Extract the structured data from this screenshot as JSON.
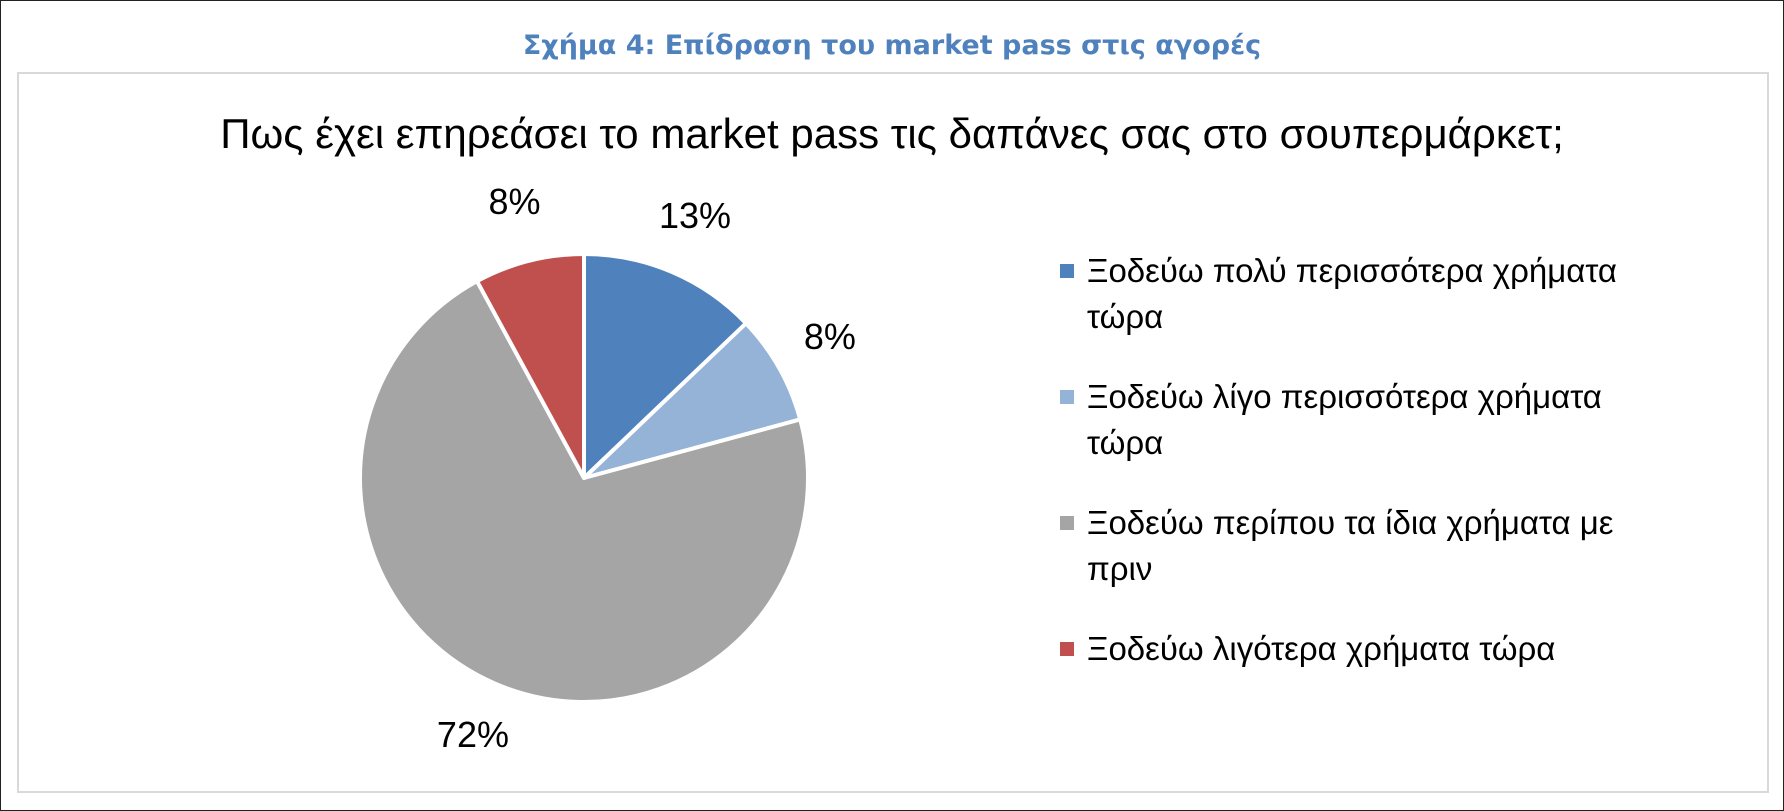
{
  "caption": "Σχήμα 4: Επίδραση του market pass στις αγορές",
  "chart_data": {
    "type": "pie",
    "title": "Πως έχει επηρεάσει το market pass τις δαπάνες σας στο σουπερμάρκετ;",
    "categories": [
      "Ξοδεύω πολύ περισσότερα χρήματα τώρα",
      "Ξοδεύω λίγο περισσότερα χρήματα τώρα",
      "Ξοδεύω περίπου τα ίδια χρήματα με πριν",
      "Ξοδεύω λιγότερα χρήματα τώρα"
    ],
    "values": [
      13,
      8,
      72,
      8
    ],
    "value_labels": [
      "13%",
      "8%",
      "72%",
      "8%"
    ],
    "colors": [
      "#4f81bd",
      "#95b3d7",
      "#a5a5a5",
      "#c0504d"
    ],
    "legend": "right"
  }
}
